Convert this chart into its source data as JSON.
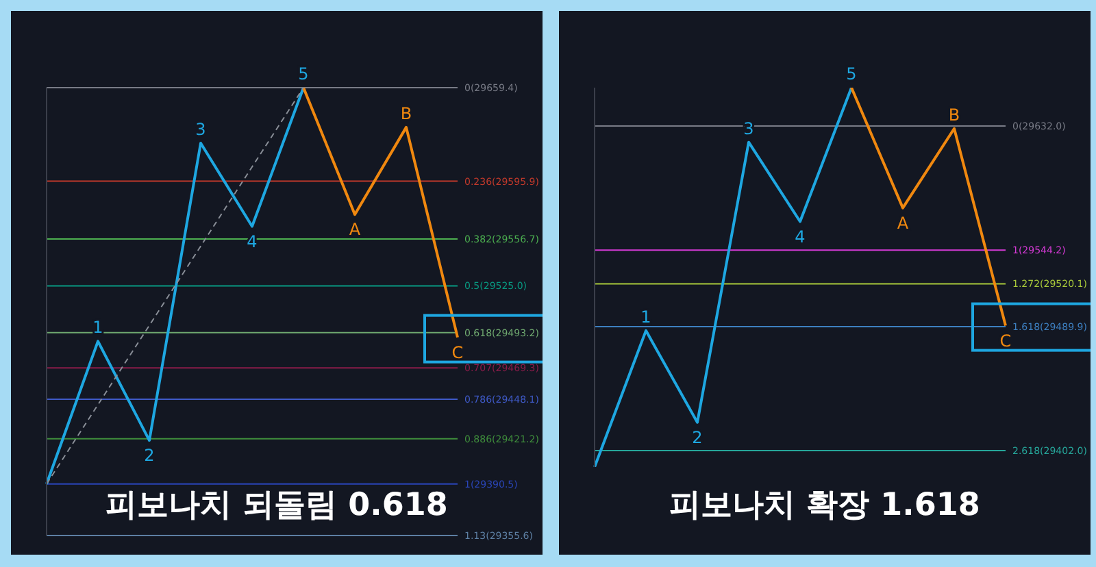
{
  "chart_data": [
    {
      "type": "line",
      "title": "피보나치 되돌림 0.618",
      "categories": [
        null,
        null,
        null,
        null,
        null,
        null,
        null,
        null,
        null
      ],
      "line_style": "solid",
      "tick_labels": false,
      "ylim": [
        1.13,
        0
      ],
      "series": [
        {
          "color": "#1ea7e1",
          "values": [
            1,
            0.64,
            0.89,
            0.14,
            0.35,
            0,
            null,
            null,
            null
          ]
        },
        {
          "color": "#f0880f",
          "values": [
            null,
            null,
            null,
            null,
            null,
            0,
            0.32,
            0.1,
            0.63
          ]
        },
        {
          "color": "#8a8f98",
          "line_style": "dashed",
          "values": [
            1,
            null,
            null,
            null,
            null,
            0,
            null,
            null,
            null
          ]
        }
      ],
      "annotations": [
        {
          "text": "1",
          "y": 0.64
        },
        {
          "text": "2",
          "y": 0.89
        },
        {
          "text": "3",
          "y": 0.14
        },
        {
          "text": "4",
          "y": 0.35
        },
        {
          "text": "5",
          "y": 0
        },
        {
          "text": "A",
          "y": 0.32
        },
        {
          "text": "B",
          "y": 0.1
        },
        {
          "text": "C",
          "y": 0.63
        }
      ],
      "ref_lines": [
        {
          "axis": "y",
          "value": 0,
          "label": "0(29659.4)",
          "color": "#787b86"
        },
        {
          "axis": "y",
          "value": 0.236,
          "label": "0.236(29595.9)",
          "color": "#c0392b"
        },
        {
          "axis": "y",
          "value": 0.382,
          "label": "0.382(29556.7)",
          "color": "#4caf50"
        },
        {
          "axis": "y",
          "value": 0.5,
          "label": "0.5(29525.0)",
          "color": "#089981"
        },
        {
          "axis": "y",
          "value": 0.618,
          "label": "0.618(29493.2)",
          "color": "#6fa86f"
        },
        {
          "axis": "y",
          "value": 0.707,
          "label": "0.707(29469.3)",
          "color": "#8a1c4a"
        },
        {
          "axis": "y",
          "value": 0.786,
          "label": "0.786(29448.1)",
          "color": "#3f5ac8"
        },
        {
          "axis": "y",
          "value": 0.886,
          "label": "0.886(29421.2)",
          "color": "#3f8e3c"
        },
        {
          "axis": "y",
          "value": 1,
          "label": "1(29390.5)",
          "color": "#2a45b8"
        },
        {
          "axis": "y",
          "value": 1.13,
          "label": "1.13(29355.6)",
          "color": "#5d7fa3"
        }
      ]
    },
    {
      "type": "line",
      "title": "피보나치 확장 1.618",
      "categories": [
        null,
        null,
        null,
        null,
        null,
        null,
        null,
        null,
        null
      ],
      "line_style": "solid",
      "tick_labels": false,
      "ylim": [
        2.75,
        -0.31
      ],
      "series": [
        {
          "color": "#1ea7e1",
          "values": [
            2.75,
            1.65,
            2.39,
            0.13,
            0.77,
            -0.31,
            null,
            null,
            null
          ]
        },
        {
          "color": "#f0880f",
          "values": [
            null,
            null,
            null,
            null,
            null,
            -0.31,
            0.66,
            0.02,
            1.61
          ]
        }
      ],
      "annotations": [
        {
          "text": "1",
          "y": 1.65
        },
        {
          "text": "2",
          "y": 2.39
        },
        {
          "text": "3",
          "y": 0.13
        },
        {
          "text": "4",
          "y": 0.77
        },
        {
          "text": "5",
          "y": -0.31
        },
        {
          "text": "A",
          "y": 0.66
        },
        {
          "text": "B",
          "y": 0.02
        },
        {
          "text": "C",
          "y": 1.61
        }
      ],
      "ref_lines": [
        {
          "axis": "y",
          "value": 0,
          "label": "0(29632.0)",
          "color": "#787b86"
        },
        {
          "axis": "y",
          "value": 1,
          "label": "1(29544.2)",
          "color": "#d63ad6"
        },
        {
          "axis": "y",
          "value": 1.272,
          "label": "1.272(29520.1)",
          "color": "#a8c83a"
        },
        {
          "axis": "y",
          "value": 1.618,
          "label": "1.618(29489.9)",
          "color": "#3d7fc0"
        },
        {
          "axis": "y",
          "value": 2.618,
          "label": "2.618(29402.0)",
          "color": "#26a69a"
        }
      ]
    }
  ]
}
